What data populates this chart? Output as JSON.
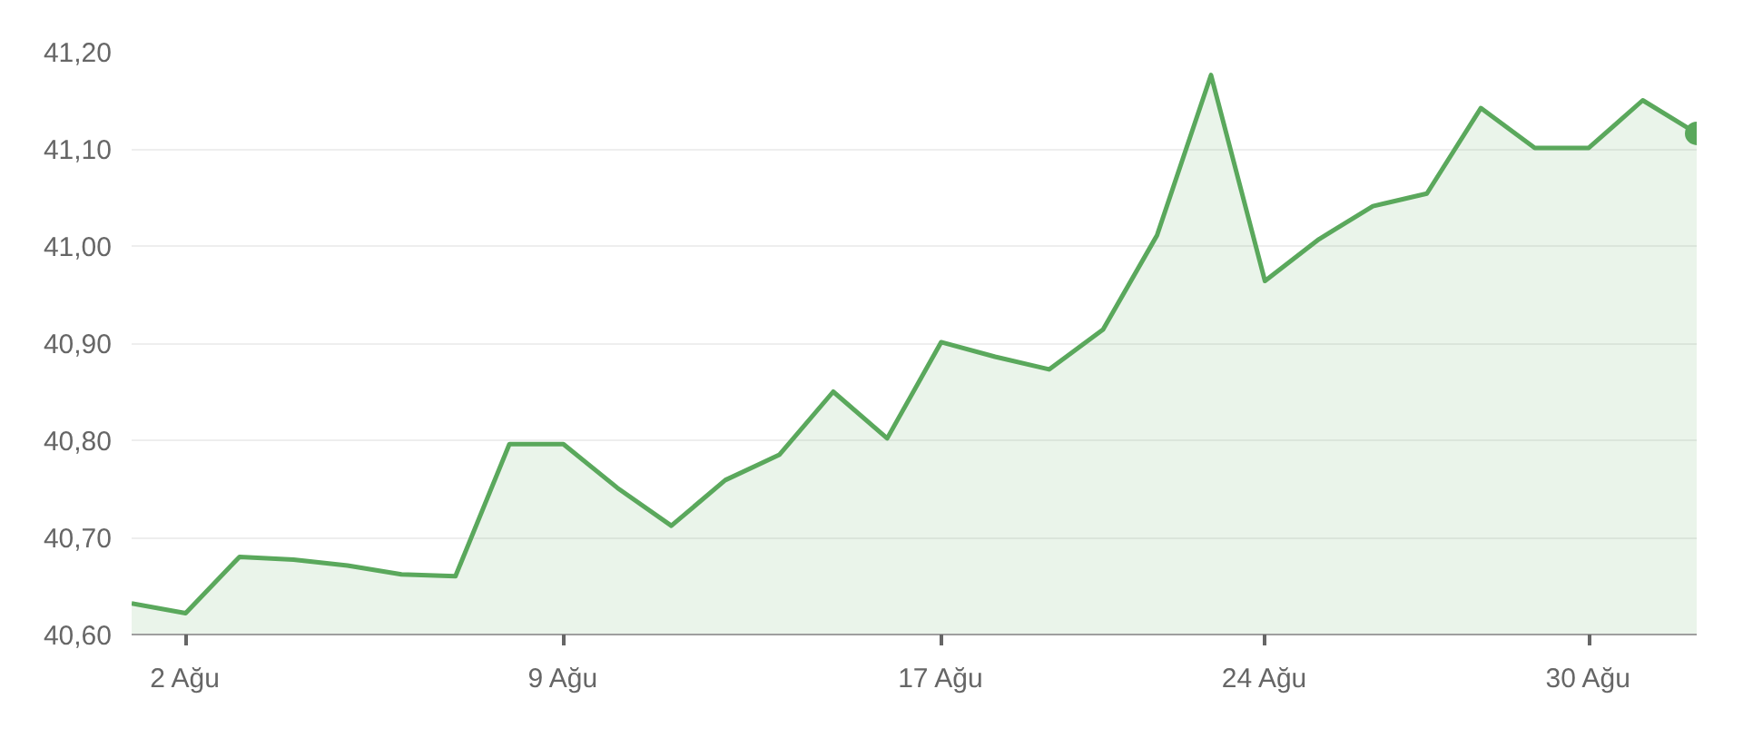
{
  "chart_data": {
    "type": "area",
    "categories": [
      null,
      "2 Ağu",
      null,
      null,
      null,
      null,
      null,
      null,
      "9 Ağu",
      null,
      null,
      null,
      null,
      null,
      null,
      "17 Ağu",
      null,
      null,
      null,
      null,
      null,
      "24 Ağu",
      null,
      null,
      null,
      null,
      null,
      "30 Ağu",
      null,
      null
    ],
    "series": [
      {
        "color": "#5aa85c",
        "values": [
          40.632,
          40.622,
          40.68,
          40.677,
          40.671,
          40.662,
          40.66,
          40.796,
          40.796,
          40.751,
          40.712,
          40.759,
          40.785,
          40.85,
          40.802,
          40.901,
          40.886,
          40.873,
          40.914,
          41.011,
          41.176,
          40.964,
          41.007,
          41.041,
          41.054,
          41.142,
          41.101,
          41.101,
          41.15,
          41.116
        ]
      }
    ],
    "ylim": [
      40.6,
      41.2
    ],
    "yticks": [
      {
        "value": 40.6,
        "label": "40,60"
      },
      {
        "value": 40.7,
        "label": "40,70"
      },
      {
        "value": 40.8,
        "label": "40,80"
      },
      {
        "value": 40.9,
        "label": "40,90"
      },
      {
        "value": 41.0,
        "label": "41,00"
      },
      {
        "value": 41.1,
        "label": "41,10"
      },
      {
        "value": 41.2,
        "label": "41,20"
      }
    ],
    "grid": "y"
  }
}
